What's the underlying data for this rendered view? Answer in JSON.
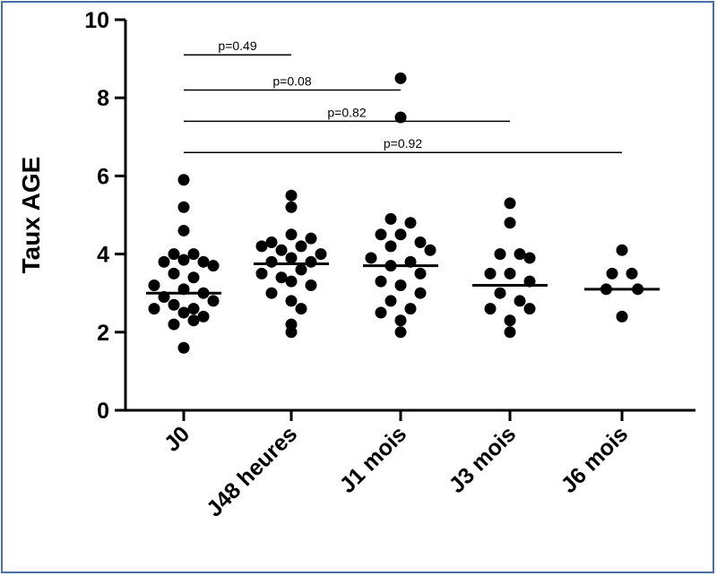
{
  "chart_data": {
    "type": "scatter",
    "ylabel": "Taux AGE",
    "xlabel": "",
    "ylim": [
      0,
      10
    ],
    "yticks": [
      "0",
      "2",
      "4",
      "6",
      "8",
      "10"
    ],
    "categories": [
      "J0",
      "J48 heures",
      "J1 mois",
      "J3 mois",
      "J6 mois"
    ],
    "medians": [
      3.0,
      3.75,
      3.7,
      3.2,
      3.1
    ],
    "points": [
      [
        [
          5.9,
          0
        ],
        [
          5.2,
          0
        ],
        [
          4.6,
          0
        ],
        [
          4.0,
          -1
        ],
        [
          4.0,
          1
        ],
        [
          3.8,
          -2
        ],
        [
          3.85,
          0
        ],
        [
          3.8,
          2
        ],
        [
          3.7,
          3
        ],
        [
          3.5,
          -1
        ],
        [
          3.4,
          1
        ],
        [
          3.2,
          -3
        ],
        [
          3.1,
          0
        ],
        [
          3.0,
          2
        ],
        [
          2.9,
          -2
        ],
        [
          2.8,
          3
        ],
        [
          2.7,
          -1
        ],
        [
          2.6,
          1
        ],
        [
          2.6,
          -3
        ],
        [
          2.5,
          0
        ],
        [
          2.4,
          2
        ],
        [
          2.2,
          -1
        ],
        [
          2.3,
          1
        ],
        [
          1.6,
          0
        ]
      ],
      [
        [
          5.5,
          0
        ],
        [
          5.2,
          0
        ],
        [
          4.5,
          0
        ],
        [
          4.4,
          2
        ],
        [
          4.3,
          -2
        ],
        [
          4.2,
          -3
        ],
        [
          4.2,
          1
        ],
        [
          4.1,
          -1
        ],
        [
          4.0,
          3
        ],
        [
          3.9,
          0
        ],
        [
          3.8,
          -2
        ],
        [
          3.8,
          2
        ],
        [
          3.6,
          1
        ],
        [
          3.5,
          -3
        ],
        [
          3.4,
          -1
        ],
        [
          3.3,
          0
        ],
        [
          3.2,
          2
        ],
        [
          3.0,
          -2
        ],
        [
          2.8,
          0
        ],
        [
          2.6,
          1
        ],
        [
          2.2,
          0
        ],
        [
          2.0,
          0
        ]
      ],
      [
        [
          8.5,
          0
        ],
        [
          7.5,
          0
        ],
        [
          4.9,
          -1
        ],
        [
          4.8,
          1
        ],
        [
          4.5,
          -2
        ],
        [
          4.5,
          0
        ],
        [
          4.3,
          2
        ],
        [
          4.2,
          -1
        ],
        [
          4.1,
          3
        ],
        [
          3.9,
          -3
        ],
        [
          3.8,
          1
        ],
        [
          3.7,
          -1
        ],
        [
          3.5,
          2
        ],
        [
          3.3,
          -2
        ],
        [
          3.2,
          0
        ],
        [
          3.0,
          2
        ],
        [
          2.8,
          -1
        ],
        [
          2.6,
          1
        ],
        [
          2.5,
          -2
        ],
        [
          2.3,
          0
        ],
        [
          2.0,
          0
        ]
      ],
      [
        [
          5.3,
          0
        ],
        [
          4.8,
          0
        ],
        [
          4.0,
          -1
        ],
        [
          4.0,
          1
        ],
        [
          3.9,
          2
        ],
        [
          3.5,
          -2
        ],
        [
          3.5,
          0
        ],
        [
          3.3,
          2
        ],
        [
          3.0,
          -1
        ],
        [
          2.8,
          1
        ],
        [
          2.6,
          -2
        ],
        [
          2.6,
          2
        ],
        [
          2.3,
          0
        ],
        [
          2.0,
          0
        ]
      ],
      [
        [
          4.1,
          0
        ],
        [
          3.5,
          -1
        ],
        [
          3.5,
          1
        ],
        [
          3.1,
          -1.6
        ],
        [
          3.1,
          1.6
        ],
        [
          2.4,
          0
        ]
      ]
    ],
    "comparisons": [
      {
        "text": "p=0.49",
        "from": 0,
        "to": 1,
        "y": 9.1
      },
      {
        "text": "p=0.08",
        "from": 0,
        "to": 2,
        "y": 8.2
      },
      {
        "text": "p=0.82",
        "from": 0,
        "to": 3,
        "y": 7.4
      },
      {
        "text": "p=0.92",
        "from": 0,
        "to": 4,
        "y": 6.6
      }
    ],
    "grid": false,
    "point_color": "#000000"
  }
}
